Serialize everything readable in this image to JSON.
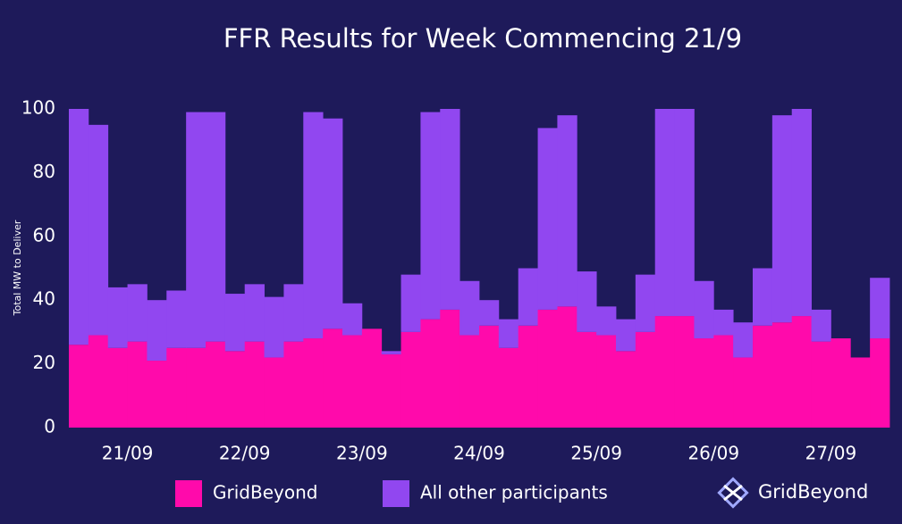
{
  "chart_data": {
    "type": "stacked_bar",
    "title": "FFR Results for Week Commencing 21/9",
    "y_label": "Total MW to Deliver",
    "categories": [
      null,
      null,
      null,
      "21/09",
      null,
      null,
      null,
      null,
      null,
      "22/09",
      null,
      null,
      null,
      null,
      null,
      "23/09",
      null,
      null,
      null,
      null,
      null,
      "24/09",
      null,
      null,
      null,
      null,
      null,
      "25/09",
      null,
      null,
      null,
      null,
      null,
      "26/09",
      null,
      null,
      null,
      null,
      null,
      "27/09",
      null,
      null
    ],
    "series": [
      {
        "name": "GridBeyond",
        "color": "#ff0aab",
        "values": [
          26,
          29,
          25,
          27,
          21,
          25,
          25,
          27,
          24,
          27,
          22,
          27,
          28,
          31,
          29,
          31,
          23,
          30,
          34,
          37,
          29,
          32,
          25,
          32,
          37,
          38,
          30,
          29,
          24,
          30,
          35,
          35,
          28,
          29,
          22,
          32,
          33,
          35,
          27,
          28,
          22,
          28
        ]
      },
      {
        "name": "All other participants",
        "color": "#9147f0",
        "values": [
          74,
          66,
          19,
          18,
          19,
          18,
          74,
          72,
          18,
          18,
          19,
          18,
          71,
          66,
          10,
          0,
          1,
          18,
          65,
          63,
          17,
          8,
          9,
          18,
          57,
          60,
          19,
          9,
          10,
          18,
          65,
          65,
          18,
          8,
          11,
          18,
          65,
          65,
          10,
          0,
          0,
          19
        ]
      }
    ],
    "ylim": [
      0,
      100
    ],
    "yticks": [
      0,
      20,
      40,
      60,
      80,
      100
    ],
    "grid": false,
    "logo": "GridBeyond"
  }
}
